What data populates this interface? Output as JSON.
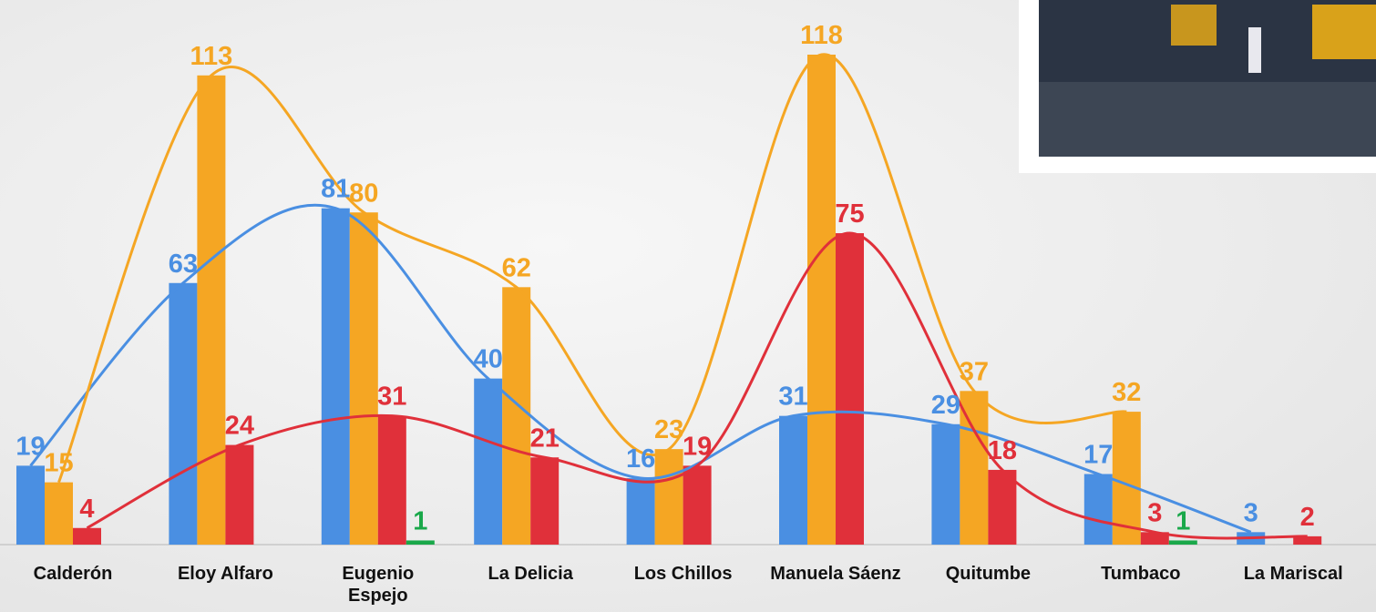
{
  "chart_data": {
    "type": "bar",
    "categories": [
      "Calderón",
      "Eloy Alfaro",
      "Eugenio Espejo",
      "La Delicia",
      "Los Chillos",
      "Manuela Sáenz",
      "Quitumbe",
      "Tumbaco",
      "La Mariscal"
    ],
    "series": [
      {
        "color": "#4a8fe2",
        "smooth_line": true,
        "values": [
          19,
          63,
          81,
          40,
          16,
          31,
          29,
          17,
          3
        ]
      },
      {
        "color": "#f5a623",
        "smooth_line": true,
        "values": [
          15,
          113,
          80,
          62,
          23,
          118,
          37,
          32,
          null
        ]
      },
      {
        "color": "#e0303a",
        "smooth_line": true,
        "values": [
          4,
          24,
          31,
          21,
          19,
          75,
          18,
          3,
          2
        ]
      },
      {
        "color": "#1aa84a",
        "smooth_line": false,
        "values": [
          null,
          null,
          1,
          null,
          null,
          null,
          null,
          1,
          null
        ]
      }
    ]
  }
}
